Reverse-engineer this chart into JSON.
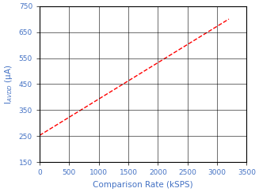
{
  "x_data": [
    0,
    3200
  ],
  "y_data": [
    253,
    700
  ],
  "line_color": "#ff0000",
  "line_style": "--",
  "line_width": 1.0,
  "xlabel": "Comparison Rate (kSPS)",
  "ylabel_display": "I$_{AVDD}$ (μA)",
  "label_color": "#4472c4",
  "tick_label_color": "#4472c4",
  "xlim": [
    0,
    3500
  ],
  "ylim": [
    150,
    750
  ],
  "xticks": [
    0,
    500,
    1000,
    1500,
    2000,
    2500,
    3000,
    3500
  ],
  "yticks": [
    150,
    250,
    350,
    450,
    550,
    650,
    750
  ],
  "grid": true,
  "background_color": "#ffffff",
  "tick_fontsize": 6.5,
  "label_fontsize": 7.5,
  "grid_color": "#000000",
  "grid_linewidth": 0.4,
  "spine_linewidth": 0.8
}
